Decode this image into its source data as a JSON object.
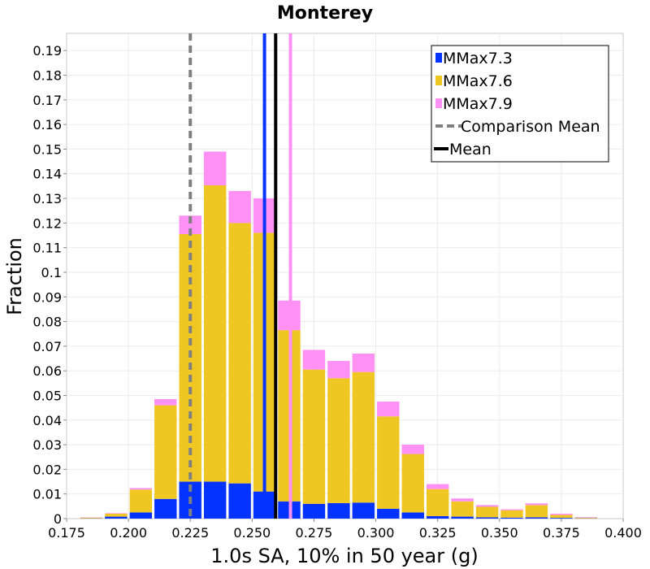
{
  "chart_data": {
    "type": "bar",
    "stacked": true,
    "title": "Monterey",
    "xlabel": "1.0s SA, 10% in 50 year (g)",
    "ylabel": "Fraction",
    "xlim": [
      0.175,
      0.4
    ],
    "ylim": [
      0,
      0.197
    ],
    "x_ticks": [
      "0.175",
      "0.200",
      "0.225",
      "0.250",
      "0.275",
      "0.300",
      "0.325",
      "0.350",
      "0.375",
      "0.400"
    ],
    "y_ticks": [
      "0",
      "0.01",
      "0.02",
      "0.03",
      "0.04",
      "0.05",
      "0.06",
      "0.07",
      "0.08",
      "0.09",
      "0.1",
      "0.11",
      "0.12",
      "0.13",
      "0.14",
      "0.15",
      "0.16",
      "0.17",
      "0.18",
      "0.19"
    ],
    "grid": true,
    "legend_position": "top-right",
    "bin_width": 0.01,
    "bin_centers": [
      0.185,
      0.195,
      0.205,
      0.215,
      0.225,
      0.235,
      0.245,
      0.255,
      0.265,
      0.275,
      0.285,
      0.295,
      0.305,
      0.315,
      0.325,
      0.335,
      0.345,
      0.355,
      0.365,
      0.375,
      0.385
    ],
    "series": [
      {
        "name": "MMax7.3",
        "color": "#0433ff",
        "values": [
          0.0001,
          0.0008,
          0.0025,
          0.008,
          0.015,
          0.015,
          0.0143,
          0.011,
          0.007,
          0.006,
          0.0063,
          0.0065,
          0.004,
          0.0025,
          0.001,
          0.0008,
          0.0005,
          0.0004,
          0.0005,
          0.0003,
          0.0001
        ]
      },
      {
        "name": "MMax7.6",
        "color": "#f0c623",
        "values": [
          0.0003,
          0.0012,
          0.0093,
          0.038,
          0.1005,
          0.1203,
          0.1057,
          0.105,
          0.0695,
          0.0545,
          0.0507,
          0.053,
          0.0375,
          0.0237,
          0.011,
          0.0062,
          0.0043,
          0.003,
          0.005,
          0.0012,
          0.0003
        ]
      },
      {
        "name": "MMax7.9",
        "color": "#ff91f5",
        "values": [
          0.0001,
          0.0002,
          0.0006,
          0.0025,
          0.0075,
          0.0137,
          0.013,
          0.014,
          0.012,
          0.008,
          0.007,
          0.0075,
          0.006,
          0.0038,
          0.002,
          0.0012,
          0.0007,
          0.0004,
          0.0007,
          0.0005,
          0.0002
        ]
      }
    ],
    "vertical_lines": [
      {
        "series": "MMax7.3",
        "x": 0.255,
        "color": "#0433ff",
        "style": "solid"
      },
      {
        "series": "MMax7.9",
        "x": 0.2655,
        "color": "#ff91f5",
        "style": "solid"
      },
      {
        "series": "Comparison Mean",
        "x": 0.225,
        "color": "#808080",
        "style": "dashed"
      },
      {
        "series": "Mean",
        "x": 0.2595,
        "color": "#000000",
        "style": "solid"
      }
    ],
    "legend": [
      {
        "label": "MMax7.3",
        "color": "#0433ff",
        "kind": "box"
      },
      {
        "label": "MMax7.6",
        "color": "#f0c623",
        "kind": "box"
      },
      {
        "label": "MMax7.9",
        "color": "#ff91f5",
        "kind": "box"
      },
      {
        "label": "Comparison Mean",
        "color": "#808080",
        "kind": "dashed"
      },
      {
        "label": "Mean",
        "color": "#000000",
        "kind": "line"
      }
    ]
  }
}
